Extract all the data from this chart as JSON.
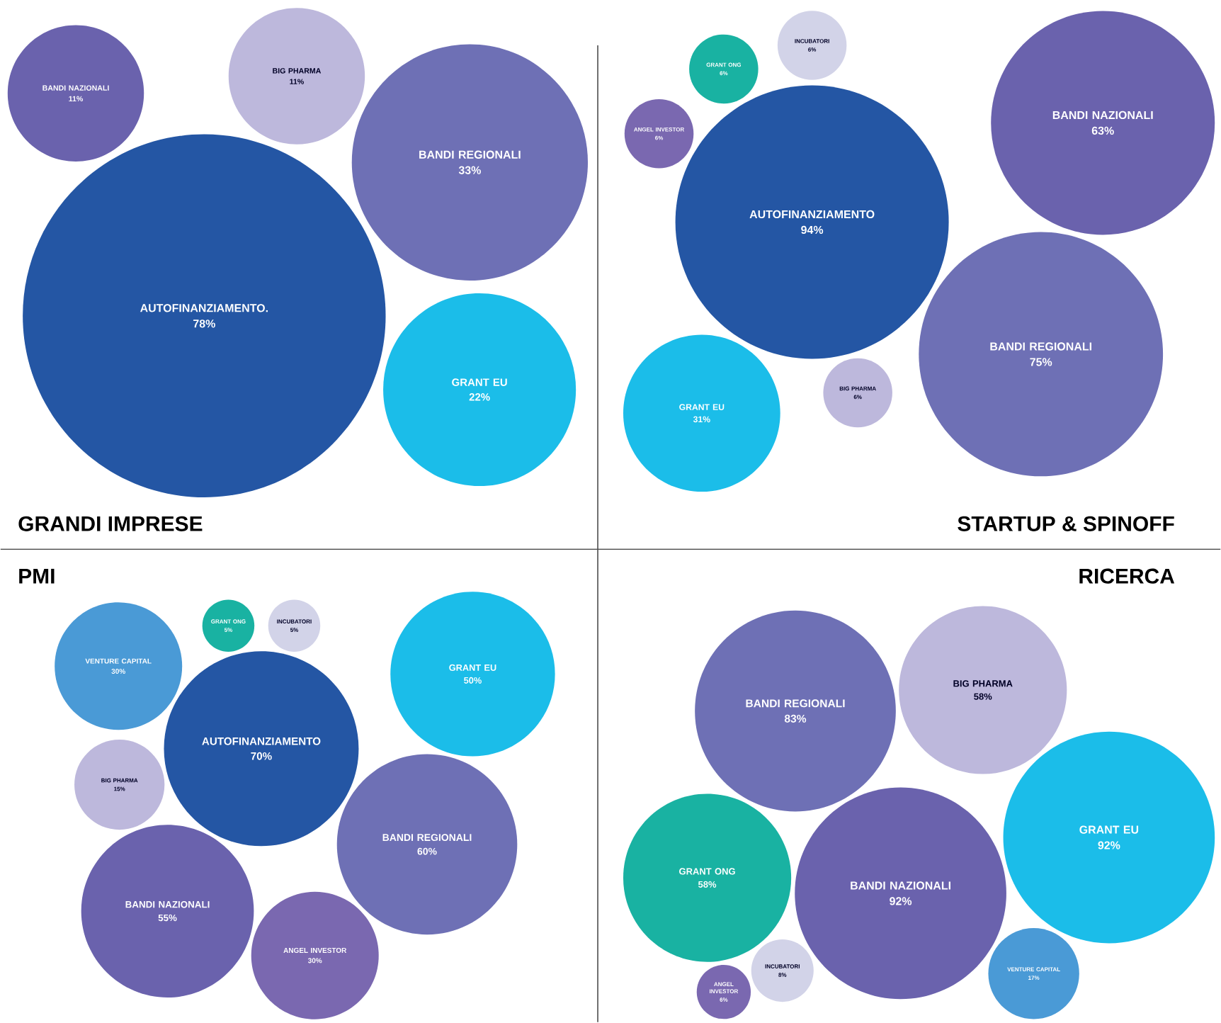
{
  "chart_data": [
    {
      "type": "other",
      "title": "GRANDI IMPRESE",
      "categories": [
        "BIG PHARMA",
        "BANDI NAZIONALI",
        "GRANT EU",
        "AUTOFINANZIAMENTO.",
        "BANDI REGIONALI"
      ],
      "values": [
        11,
        11,
        22,
        78,
        33
      ],
      "value_labels": [
        "11%",
        "11%",
        "22%",
        "78%",
        "33%"
      ],
      "colors": [
        "#bdb8dc",
        "#6a62ad",
        "#1bbde9",
        "#2456a4",
        "#6e70b5"
      ]
    },
    {
      "type": "other",
      "title": "STARTUP & SPINOFF",
      "categories": [
        "GRANT EU",
        "BANDI NAZIONALI",
        "BIG PHARMA",
        "AUTOFINANZIAMENTO",
        "BANDI REGIONALI",
        "ANGEL INVESTOR",
        "GRANT ONG",
        "INCUBATORI"
      ],
      "values": [
        31,
        63,
        6,
        94,
        75,
        6,
        6,
        6
      ],
      "value_labels": [
        "31%",
        "63%",
        "6%",
        "94%",
        "75%",
        "6%",
        "6%",
        "6%"
      ],
      "colors": [
        "#1bbde9",
        "#6a62ad",
        "#bdb8dc",
        "#2456a4",
        "#6e70b5",
        "#7a68b0",
        "#19b2a2",
        "#d2d3e8"
      ]
    },
    {
      "type": "other",
      "title": "PMI",
      "categories": [
        "GRANT EU",
        "BANDI NAZIONALI",
        "VENTURE CAPITAL",
        "AUTOFINANZIAMENTO",
        "BANDI REGIONALI",
        "ANGEL INVESTOR",
        "BIG PHARMA",
        "GRANT ONG",
        "INCUBATORI"
      ],
      "values": [
        50,
        55,
        30,
        70,
        60,
        30,
        15,
        5,
        5
      ],
      "value_labels": [
        "50%",
        "55%",
        "30%",
        "70%",
        "60%",
        "30%",
        "15%",
        "5%",
        "5%"
      ],
      "colors": [
        "#1bbde9",
        "#6a62ad",
        "#4a9ad6",
        "#2456a4",
        "#6e70b5",
        "#7a68b0",
        "#bdb8dc",
        "#19b2a2",
        "#d2d3e8"
      ]
    },
    {
      "type": "other",
      "title": "RICERCA",
      "categories": [
        "BIG PHARMA",
        "BANDI REGIONALI",
        "GRANT ONG",
        "BANDI NAZIONALI",
        "GRANT EU",
        "VENTURE CAPITAL",
        "ANGEL INVESTOR",
        "INCUBATORI"
      ],
      "values": [
        58,
        83,
        58,
        92,
        92,
        17,
        6,
        8
      ],
      "value_labels": [
        "58%",
        "83%",
        "58%",
        "92%",
        "92%",
        "17%",
        "6%",
        "8%"
      ],
      "colors": [
        "#bdb8dc",
        "#6e70b5",
        "#19b2a2",
        "#6a62ad",
        "#1bbde9",
        "#4a9ad6",
        "#7a68b0",
        "#d2d3e8"
      ]
    }
  ]
}
